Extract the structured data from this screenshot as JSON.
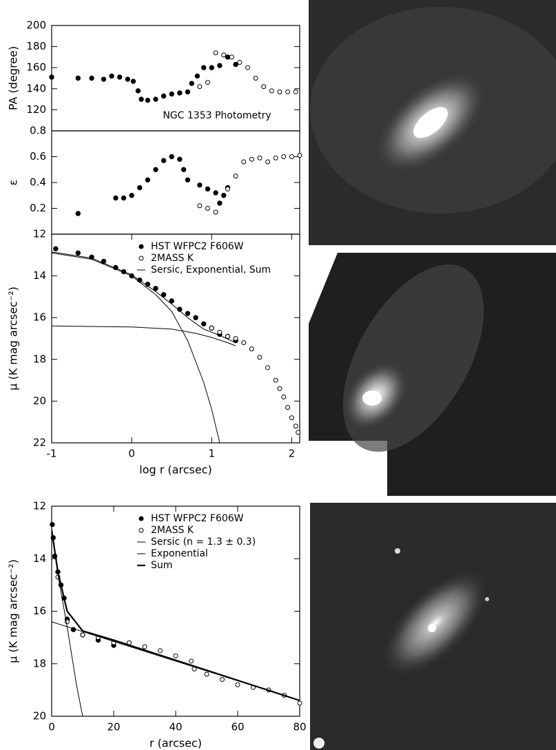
{
  "chart_data": [
    {
      "type": "scatter",
      "ylabel": "PA  (degree)",
      "annotation": "NGC 1353 Photometry",
      "xlim": [
        -1,
        2.1
      ],
      "ylim": [
        100,
        200
      ],
      "yticks": [
        120,
        140,
        160,
        180,
        200
      ],
      "series": [
        {
          "marker": "filled",
          "color": "#000",
          "x": [
            -1,
            -0.67,
            -0.5,
            -0.35,
            -0.25,
            -0.15,
            -0.05,
            0.02,
            0.08,
            0.12,
            0.2,
            0.3,
            0.4,
            0.5,
            0.6,
            0.7,
            0.75,
            0.82,
            0.9,
            1.0,
            1.1,
            1.2,
            1.3
          ],
          "values": [
            151,
            150,
            150,
            149,
            152,
            151,
            149,
            147,
            138,
            130,
            129,
            130,
            133,
            135,
            136,
            137,
            145,
            152,
            160,
            160,
            162,
            170,
            163
          ]
        },
        {
          "marker": "open",
          "color": "#000",
          "x": [
            0.85,
            0.95,
            1.05,
            1.15,
            1.25,
            1.35,
            1.45,
            1.55,
            1.65,
            1.75,
            1.85,
            1.95,
            2.05
          ],
          "values": [
            142,
            146,
            174,
            172,
            170,
            165,
            160,
            150,
            142,
            138,
            137,
            137,
            137
          ]
        }
      ]
    },
    {
      "type": "scatter",
      "ylabel": "ε",
      "xlim": [
        -1,
        2.1
      ],
      "ylim": [
        0,
        0.8
      ],
      "yticks": [
        0.2,
        0.4,
        0.6,
        0.8
      ],
      "series": [
        {
          "marker": "filled",
          "color": "#000",
          "x": [
            -0.67,
            -0.2,
            -0.1,
            0,
            0.1,
            0.2,
            0.3,
            0.4,
            0.5,
            0.6,
            0.65,
            0.7,
            0.85,
            0.95,
            1.05,
            1.1,
            1.15,
            1.2
          ],
          "values": [
            0.16,
            0.28,
            0.28,
            0.3,
            0.36,
            0.42,
            0.5,
            0.57,
            0.6,
            0.58,
            0.5,
            0.42,
            0.38,
            0.35,
            0.32,
            0.24,
            0.3,
            0.36
          ]
        },
        {
          "marker": "open",
          "color": "#000",
          "x": [
            0.85,
            0.95,
            1.05,
            1.2,
            1.3,
            1.4,
            1.5,
            1.6,
            1.7,
            1.8,
            1.9,
            2.0,
            2.1
          ],
          "values": [
            0.22,
            0.2,
            0.17,
            0.35,
            0.45,
            0.56,
            0.58,
            0.59,
            0.56,
            0.59,
            0.6,
            0.6,
            0.61
          ]
        }
      ]
    },
    {
      "type": "scatter",
      "ylabel": "μ (K mag arcsec⁻²)",
      "xlabel": "log r (arcsec)",
      "legend": "upper right",
      "xlim": [
        -1,
        2.1
      ],
      "ylim": [
        22,
        12
      ],
      "xticks": [
        -1,
        0,
        1,
        2
      ],
      "yticks": [
        12,
        14,
        16,
        18,
        20,
        22
      ],
      "series": [
        {
          "name": "HST WFPC2 F606W",
          "marker": "filled",
          "color": "#000",
          "x": [
            -0.95,
            -0.67,
            -0.5,
            -0.35,
            -0.2,
            -0.1,
            0,
            0.1,
            0.2,
            0.3,
            0.4,
            0.5,
            0.6,
            0.7,
            0.8,
            0.9,
            1.0,
            1.1,
            1.2,
            1.3
          ],
          "values": [
            12.7,
            12.9,
            13.1,
            13.3,
            13.6,
            13.8,
            14.0,
            14.2,
            14.4,
            14.6,
            14.9,
            15.2,
            15.6,
            15.8,
            16.0,
            16.3,
            16.5,
            16.8,
            16.9,
            17.1
          ]
        },
        {
          "name": "2MASS K",
          "marker": "open",
          "color": "#000",
          "x": [
            1.0,
            1.1,
            1.2,
            1.3,
            1.4,
            1.5,
            1.6,
            1.7,
            1.8,
            1.85,
            1.9,
            1.95,
            2.0,
            2.05,
            2.08
          ],
          "values": [
            16.5,
            16.7,
            16.9,
            17.0,
            17.2,
            17.5,
            17.9,
            18.4,
            19.0,
            19.4,
            19.8,
            20.3,
            20.8,
            21.2,
            21.5
          ]
        },
        {
          "name": "Sersic, Exponential, Sum",
          "marker": "line",
          "color": "#000",
          "linewidth": 1,
          "x": [
            -1,
            -0.5,
            0,
            0.3,
            0.5,
            0.7,
            0.9,
            1.0,
            1.1
          ],
          "values": [
            12.9,
            13.2,
            14.0,
            14.9,
            15.7,
            17.1,
            19.1,
            20.4,
            22
          ]
        },
        {
          "marker": "line",
          "color": "#000",
          "linewidth": 1,
          "x": [
            -1,
            0,
            0.5,
            0.8,
            1.0,
            1.2,
            1.3
          ],
          "values": [
            16.4,
            16.45,
            16.55,
            16.75,
            16.95,
            17.2,
            17.35
          ]
        },
        {
          "marker": "line",
          "color": "#000",
          "linewidth": 1,
          "x": [
            -1,
            -0.5,
            0,
            0.3,
            0.5,
            0.7,
            0.9,
            1.1,
            1.3
          ],
          "values": [
            12.85,
            13.15,
            13.95,
            14.75,
            15.35,
            16.0,
            16.55,
            16.85,
            17.2
          ]
        }
      ]
    },
    {
      "type": "scatter",
      "ylabel": "μ (K mag arcsec⁻²)",
      "xlabel": "r (arcsec)",
      "legend": "upper right",
      "xlim": [
        0,
        80
      ],
      "ylim": [
        20,
        12
      ],
      "xticks": [
        0,
        20,
        40,
        60,
        80
      ],
      "yticks": [
        12,
        14,
        16,
        18,
        20
      ],
      "series": [
        {
          "name": "HST WFPC2 F606W",
          "marker": "filled",
          "color": "#000",
          "x": [
            0.2,
            0.5,
            1,
            2,
            3,
            4,
            5,
            7,
            10,
            15,
            20
          ],
          "values": [
            12.7,
            13.2,
            13.9,
            14.5,
            15.0,
            15.5,
            16.3,
            16.7,
            16.9,
            17.1,
            17.3
          ]
        },
        {
          "name": "2MASS K",
          "marker": "open",
          "color": "#000",
          "x": [
            2,
            5,
            10,
            15,
            20,
            25,
            30,
            35,
            40,
            45,
            46,
            50,
            55,
            60,
            65,
            70,
            75,
            80
          ],
          "values": [
            14.7,
            16.4,
            16.9,
            17.0,
            17.2,
            17.2,
            17.35,
            17.5,
            17.7,
            17.9,
            18.2,
            18.4,
            18.6,
            18.8,
            18.9,
            19.0,
            19.2,
            19.5
          ]
        },
        {
          "name": "Sersic (n = 1.3 ± 0.3)",
          "marker": "line",
          "color": "#000",
          "linewidth": 1,
          "x": [
            0,
            2,
            5,
            8,
            10
          ],
          "values": [
            13.0,
            14.6,
            16.6,
            18.8,
            20.0
          ]
        },
        {
          "name": "Exponential",
          "marker": "line",
          "color": "#000",
          "linewidth": 1,
          "x": [
            0,
            80
          ],
          "values": [
            16.4,
            19.4
          ]
        },
        {
          "name": "Sum",
          "marker": "line",
          "color": "#000",
          "linewidth": 2.2,
          "x": [
            0,
            2,
            5,
            10,
            20,
            80
          ],
          "values": [
            12.9,
            14.5,
            16.0,
            16.75,
            17.1,
            19.4
          ]
        }
      ]
    }
  ]
}
